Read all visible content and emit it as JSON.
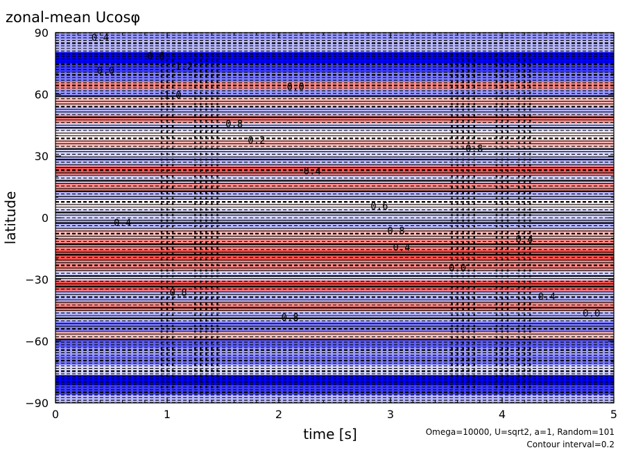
{
  "chart_data": {
    "type": "heatmap",
    "title": "zonal-mean Ucosφ",
    "xlabel": "time [s]",
    "ylabel": "latitude",
    "xlim": [
      0,
      5
    ],
    "ylim": [
      -90,
      90
    ],
    "xticks": [
      0,
      1,
      2,
      3,
      4,
      5
    ],
    "yticks": [
      -90,
      -60,
      -30,
      0,
      30,
      60,
      90
    ],
    "ytick_labels": [
      "−90",
      "−60",
      "−30",
      "0",
      "30",
      "60",
      "90"
    ],
    "annotation_line1": "Omega=10000, U=sqrt2, a=1, Random=101",
    "annotation_line2": "Contour interval=0.2",
    "contour_interval": 0.2,
    "colors": {
      "negative": "#0000ff",
      "positive": "#ff3030",
      "contour": "#000000"
    },
    "contour_labels": [
      "0.4",
      "0.0",
      "0.6",
      "1.0",
      "1.2",
      "0.8",
      "0.2",
      "0.0",
      "0.4",
      "0.6",
      "0.8",
      "0.4",
      "0.0",
      "0.8",
      "0.4",
      "0.4",
      "0.0",
      "0.8",
      "0.4",
      "0.8"
    ],
    "bands": [
      {
        "lat": 89,
        "value": -0.6
      },
      {
        "lat": 84,
        "value": -0.4
      },
      {
        "lat": 77,
        "value": -1.6
      },
      {
        "lat": 73,
        "value": -1.2
      },
      {
        "lat": 68,
        "value": -0.8
      },
      {
        "lat": 64,
        "value": 0.4
      },
      {
        "lat": 61,
        "value": -0.6
      },
      {
        "lat": 56,
        "value": 0.2
      },
      {
        "lat": 52,
        "value": -0.4
      },
      {
        "lat": 48,
        "value": 0.4
      },
      {
        "lat": 44,
        "value": -0.2
      },
      {
        "lat": 40,
        "value": 0.0
      },
      {
        "lat": 36,
        "value": 0.2
      },
      {
        "lat": 32,
        "value": -0.2
      },
      {
        "lat": 27,
        "value": -0.4
      },
      {
        "lat": 23,
        "value": 0.6
      },
      {
        "lat": 19,
        "value": -0.2
      },
      {
        "lat": 15,
        "value": 0.4
      },
      {
        "lat": 11,
        "value": -0.4
      },
      {
        "lat": 7,
        "value": 0.0
      },
      {
        "lat": 2,
        "value": -0.2
      },
      {
        "lat": -3,
        "value": -0.4
      },
      {
        "lat": -8,
        "value": 0.2
      },
      {
        "lat": -13,
        "value": 0.4
      },
      {
        "lat": -18,
        "value": 0.6
      },
      {
        "lat": -23,
        "value": 0.4
      },
      {
        "lat": -28,
        "value": -0.2
      },
      {
        "lat": -33,
        "value": 0.6
      },
      {
        "lat": -38,
        "value": -0.4
      },
      {
        "lat": -43,
        "value": 0.4
      },
      {
        "lat": -48,
        "value": -0.4
      },
      {
        "lat": -53,
        "value": -0.8
      },
      {
        "lat": -57,
        "value": 0.2
      },
      {
        "lat": -61,
        "value": -1.0
      },
      {
        "lat": -65,
        "value": -0.6
      },
      {
        "lat": -69,
        "value": -0.8
      },
      {
        "lat": -74,
        "value": -0.2
      },
      {
        "lat": -79,
        "value": -1.6
      },
      {
        "lat": -84,
        "value": -1.2
      },
      {
        "lat": -88,
        "value": -0.4
      }
    ],
    "grid": false
  }
}
